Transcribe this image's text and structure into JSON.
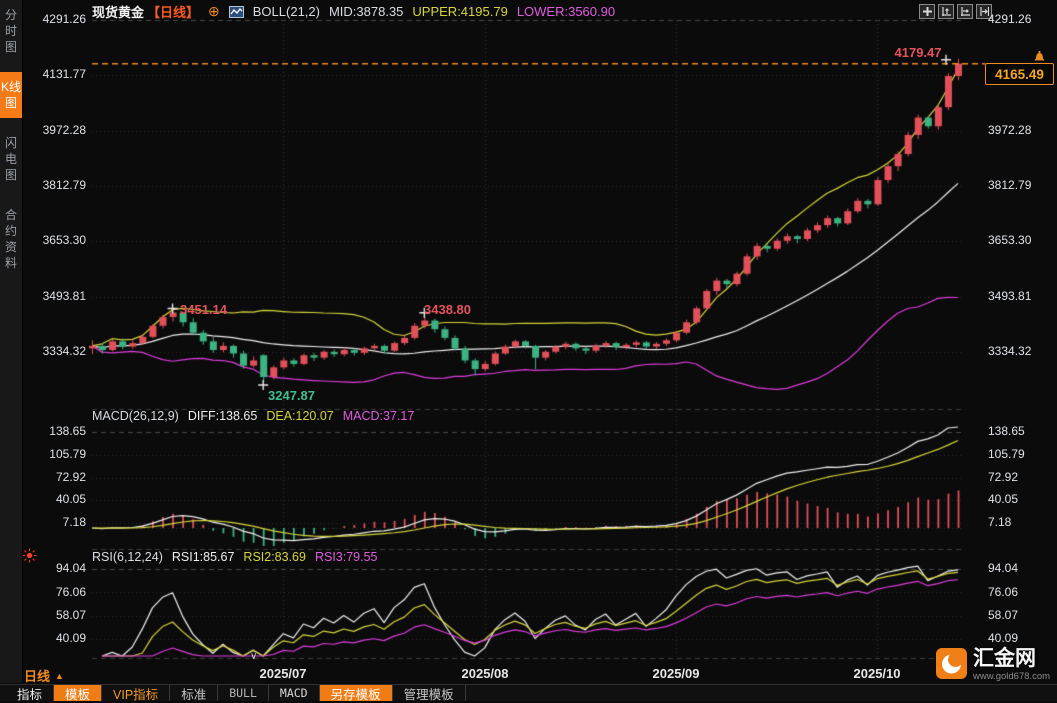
{
  "sidebar": {
    "items": [
      {
        "label": "分时图",
        "active": false
      },
      {
        "label": "K线图",
        "active": true
      },
      {
        "label": "闪电图",
        "active": false
      },
      {
        "label": "合约资料",
        "active": false
      }
    ]
  },
  "header": {
    "symbol": "现货黄金",
    "period_tag": "【日线】",
    "add_icon": "⊕",
    "indicator": "BOLL(21,2)",
    "mid": "MID:3878.35",
    "upper": "UPPER:4195.79",
    "lower": "LOWER:3560.90"
  },
  "top_icons": [
    {
      "name": "crosshair-icon"
    },
    {
      "name": "y-axis-expand-icon"
    },
    {
      "name": "x-axis-expand-icon"
    },
    {
      "name": "scroll-to-latest-icon"
    }
  ],
  "axes": {
    "price": [
      "4291.26",
      "4131.77",
      "3972.28",
      "3812.79",
      "3653.30",
      "3493.81",
      "3334.32"
    ],
    "macd": [
      "138.65",
      "105.79",
      "72.92",
      "40.05",
      "7.18"
    ],
    "rsi": [
      "94.04",
      "76.06",
      "58.07",
      "40.09"
    ],
    "months": [
      "2025/07",
      "2025/08",
      "2025/09",
      "2025/10"
    ]
  },
  "macd_header": {
    "name": "MACD(26,12,9)",
    "diff": "DIFF:138.65",
    "dea": "DEA:120.07",
    "macd": "MACD:37.17"
  },
  "rsi_header": {
    "name": "RSI(6,12,24)",
    "rsi1": "RSI1:85.67",
    "rsi2": "RSI2:83.69",
    "rsi3": "RSI3:79.55"
  },
  "annotations": {
    "peak_high": "4179.47",
    "current_price": "4165.49",
    "swing_high_1": "3451.14",
    "swing_high_2": "3438.80",
    "swing_low": "3247.87"
  },
  "footer": {
    "period": "日线",
    "period_arrow": "▲",
    "collapse_chevron": "∨",
    "toolbar": [
      {
        "label": "指标"
      },
      {
        "label": "模板"
      },
      {
        "label": "VIP指标"
      },
      {
        "label": "标准"
      },
      {
        "label": "BULL"
      },
      {
        "label": "MACD"
      },
      {
        "label": "另存模板"
      },
      {
        "label": "管理模板"
      }
    ]
  },
  "logo": {
    "name": "汇金网",
    "url": "www.gold678.com"
  },
  "colors": {
    "up_candle": "#e2505a",
    "down_candle": "#3bb383",
    "boll_upper": "#d6d63c",
    "boll_mid": "#f0f0f0",
    "boll_lower": "#dd3ddd",
    "accent_orange": "#f08c1e",
    "annotation_red": "#e5535e",
    "annotation_green": "#3fbf8f"
  },
  "chart_data": {
    "type": "candlestick",
    "title": "现货黄金 日线",
    "x_axis_labels": [
      "2025/07",
      "2025/08",
      "2025/09",
      "2025/10"
    ],
    "price_axis_ticks": [
      4291.26,
      4131.77,
      3972.28,
      3812.79,
      3653.3,
      3493.81,
      3334.32
    ],
    "overlays": {
      "bollinger": {
        "period": 21,
        "k": 2,
        "mid": 3878.35,
        "upper": 4195.79,
        "lower": 3560.9
      }
    },
    "panels": {
      "macd": {
        "params": [
          26,
          12,
          9
        ],
        "diff": 138.65,
        "dea": 120.07,
        "macd": 37.17,
        "ticks": [
          138.65,
          105.79,
          72.92,
          40.05,
          7.18
        ]
      },
      "rsi": {
        "params": [
          6,
          12,
          24
        ],
        "rsi1": 85.67,
        "rsi2": 83.69,
        "rsi3": 79.55,
        "ticks": [
          94.04,
          76.06,
          58.07,
          40.09
        ]
      }
    },
    "key_points": {
      "high": 4179.47,
      "last_close": 4165.49,
      "swing_high_1": 3451.14,
      "swing_high_2": 3438.8,
      "swing_low": 3247.87
    },
    "candles": [
      [
        3345,
        3368,
        3328,
        3352
      ],
      [
        3352,
        3360,
        3330,
        3340
      ],
      [
        3340,
        3372,
        3336,
        3365
      ],
      [
        3365,
        3374,
        3342,
        3350
      ],
      [
        3350,
        3368,
        3344,
        3360
      ],
      [
        3360,
        3386,
        3355,
        3378
      ],
      [
        3378,
        3415,
        3374,
        3410
      ],
      [
        3410,
        3442,
        3402,
        3435
      ],
      [
        3435,
        3451.14,
        3422,
        3448
      ],
      [
        3448,
        3450,
        3408,
        3420
      ],
      [
        3420,
        3432,
        3382,
        3390
      ],
      [
        3390,
        3398,
        3355,
        3365
      ],
      [
        3365,
        3377,
        3332,
        3340
      ],
      [
        3340,
        3362,
        3333,
        3352
      ],
      [
        3352,
        3356,
        3318,
        3330
      ],
      [
        3330,
        3338,
        3286,
        3295
      ],
      [
        3295,
        3322,
        3290,
        3310
      ],
      [
        3325,
        3328,
        3247.87,
        3262
      ],
      [
        3262,
        3296,
        3255,
        3290
      ],
      [
        3290,
        3318,
        3284,
        3310
      ],
      [
        3310,
        3316,
        3292,
        3300
      ],
      [
        3300,
        3330,
        3296,
        3325
      ],
      [
        3325,
        3332,
        3308,
        3318
      ],
      [
        3318,
        3340,
        3312,
        3335
      ],
      [
        3335,
        3342,
        3320,
        3328
      ],
      [
        3328,
        3348,
        3322,
        3340
      ],
      [
        3340,
        3346,
        3324,
        3332
      ],
      [
        3332,
        3350,
        3326,
        3345
      ],
      [
        3345,
        3358,
        3338,
        3352
      ],
      [
        3352,
        3356,
        3330,
        3338
      ],
      [
        3338,
        3365,
        3334,
        3360
      ],
      [
        3360,
        3382,
        3354,
        3375
      ],
      [
        3375,
        3418,
        3370,
        3410
      ],
      [
        3410,
        3438.8,
        3402,
        3425
      ],
      [
        3425,
        3430,
        3390,
        3400
      ],
      [
        3400,
        3408,
        3368,
        3375
      ],
      [
        3375,
        3382,
        3338,
        3345
      ],
      [
        3345,
        3352,
        3302,
        3310
      ],
      [
        3310,
        3316,
        3268,
        3285
      ],
      [
        3285,
        3308,
        3278,
        3300
      ],
      [
        3300,
        3336,
        3295,
        3330
      ],
      [
        3330,
        3356,
        3326,
        3350
      ],
      [
        3350,
        3370,
        3344,
        3365
      ],
      [
        3365,
        3368,
        3345,
        3352
      ],
      [
        3352,
        3355,
        3285,
        3318
      ],
      [
        3318,
        3340,
        3310,
        3335
      ],
      [
        3335,
        3355,
        3330,
        3350
      ],
      [
        3350,
        3364,
        3342,
        3358
      ],
      [
        3358,
        3362,
        3338,
        3345
      ],
      [
        3345,
        3350,
        3328,
        3338
      ],
      [
        3338,
        3358,
        3332,
        3352
      ],
      [
        3352,
        3366,
        3346,
        3360
      ],
      [
        3360,
        3364,
        3340,
        3348
      ],
      [
        3348,
        3360,
        3342,
        3355
      ],
      [
        3355,
        3368,
        3348,
        3362
      ],
      [
        3362,
        3366,
        3342,
        3350
      ],
      [
        3350,
        3363,
        3344,
        3358
      ],
      [
        3358,
        3374,
        3352,
        3368
      ],
      [
        3368,
        3396,
        3362,
        3390
      ],
      [
        3390,
        3428,
        3385,
        3420
      ],
      [
        3420,
        3466,
        3414,
        3460
      ],
      [
        3460,
        3516,
        3455,
        3510
      ],
      [
        3510,
        3548,
        3498,
        3540
      ],
      [
        3540,
        3545,
        3518,
        3530
      ],
      [
        3530,
        3566,
        3524,
        3560
      ],
      [
        3560,
        3618,
        3554,
        3610
      ],
      [
        3610,
        3648,
        3600,
        3640
      ],
      [
        3640,
        3650,
        3622,
        3632
      ],
      [
        3632,
        3662,
        3626,
        3655
      ],
      [
        3655,
        3676,
        3646,
        3668
      ],
      [
        3668,
        3672,
        3648,
        3660
      ],
      [
        3660,
        3692,
        3654,
        3685
      ],
      [
        3685,
        3708,
        3678,
        3700
      ],
      [
        3700,
        3728,
        3692,
        3720
      ],
      [
        3720,
        3724,
        3696,
        3705
      ],
      [
        3705,
        3748,
        3700,
        3740
      ],
      [
        3740,
        3778,
        3734,
        3770
      ],
      [
        3770,
        3775,
        3748,
        3760
      ],
      [
        3760,
        3838,
        3755,
        3830
      ],
      [
        3830,
        3878,
        3822,
        3870
      ],
      [
        3870,
        3912,
        3856,
        3905
      ],
      [
        3905,
        3968,
        3898,
        3960
      ],
      [
        3960,
        4018,
        3948,
        4010
      ],
      [
        4010,
        4015,
        3978,
        3985
      ],
      [
        3985,
        4048,
        3975,
        4040
      ],
      [
        4040,
        4138,
        4032,
        4130
      ],
      [
        4130,
        4179.47,
        4118,
        4165.49
      ]
    ]
  }
}
